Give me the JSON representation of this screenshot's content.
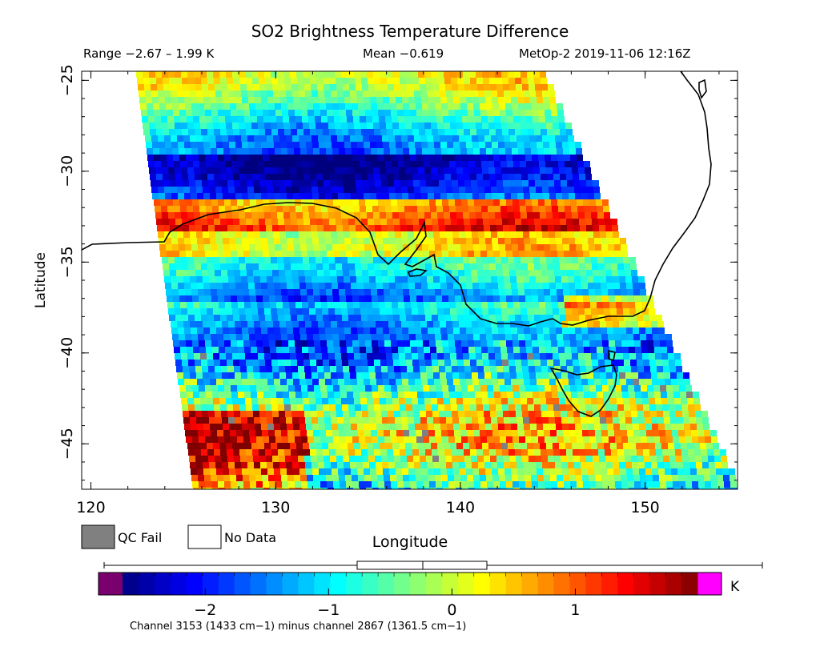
{
  "title": "SO2 Brightness Temperature Difference",
  "stats": {
    "range": "Range −2.67 – 1.99 K",
    "mean": "Mean −0.619",
    "source": "MetOp-2 2019-11-06 12:16Z"
  },
  "axes": {
    "xlabel": "Longitude",
    "ylabel": "Latitude",
    "xticks": [
      "120",
      "130",
      "140",
      "150"
    ],
    "yticks": [
      "−25",
      "−30",
      "−35",
      "−40",
      "−45"
    ]
  },
  "legend": {
    "qc_fail": "QC Fail",
    "no_data": "No Data",
    "qc_fail_color": "#808080",
    "no_data_color": "#ffffff"
  },
  "colorbar": {
    "ticks": [
      "−2",
      "−1",
      "0",
      "1"
    ],
    "unit": "K",
    "below_color": "#7b006f",
    "above_color": "#ff00ff",
    "palette": [
      "#00007f",
      "#0000ff",
      "#007fff",
      "#00ffff",
      "#7fff7f",
      "#ffff00",
      "#ff7f00",
      "#ff0000",
      "#7f0000"
    ]
  },
  "caption": "Channel 3153 (1433 cm−1) minus channel 2867 (1361.5 cm−1)",
  "map": {
    "lon_range": [
      119.5,
      155.0
    ],
    "lat_range": [
      -47.5,
      -24.5
    ],
    "data_range_K": [
      -2.67,
      1.99
    ],
    "mean_K": -0.619,
    "coastline": "Southern Australia and Tasmania"
  }
}
